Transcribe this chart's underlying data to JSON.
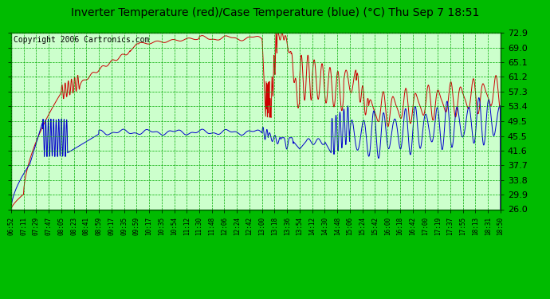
{
  "title": "Inverter Temperature (red)/Case Temperature (blue) (°C) Thu Sep 7 18:51",
  "copyright": "Copyright 2006 Cartronics.com",
  "bg_color": "#00bb00",
  "plot_bg_color": "#ccffcc",
  "grid_color": "#00aa00",
  "y_ticks": [
    26.0,
    29.9,
    33.8,
    37.7,
    41.6,
    45.5,
    49.5,
    53.4,
    57.3,
    61.2,
    65.1,
    69.0,
    72.9
  ],
  "x_labels": [
    "06:52",
    "07:11",
    "07:29",
    "07:47",
    "08:05",
    "08:23",
    "08:41",
    "08:59",
    "09:17",
    "09:35",
    "09:59",
    "10:17",
    "10:35",
    "10:54",
    "11:12",
    "11:30",
    "11:48",
    "12:06",
    "12:24",
    "12:42",
    "13:00",
    "13:18",
    "13:36",
    "13:54",
    "14:12",
    "14:30",
    "14:48",
    "15:06",
    "15:24",
    "15:42",
    "16:00",
    "16:18",
    "16:42",
    "17:00",
    "17:19",
    "17:37",
    "17:55",
    "18:13",
    "18:31",
    "18:50"
  ],
  "y_min": 26.0,
  "y_max": 72.9,
  "line_color_red": "#cc0000",
  "line_color_blue": "#0000cc",
  "title_fontsize": 10,
  "copyright_fontsize": 7
}
